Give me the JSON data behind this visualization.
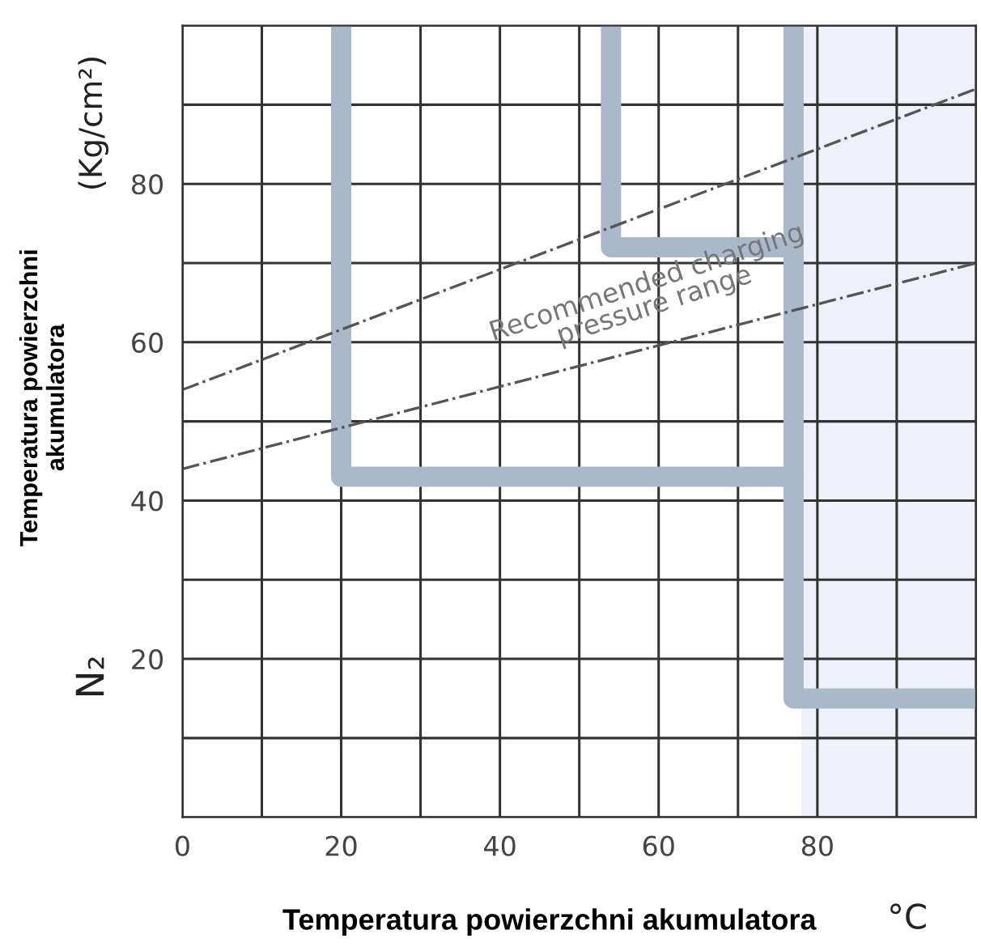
{
  "chart_data": {
    "type": "line",
    "xlabel": "Temperatura powierzchni akumulatora",
    "ylabel": "Temperatura powierzchni\nakumulatora",
    "annotations": [
      "Recommended charging\npressure range",
      "(Kg/cm²)",
      "N₂",
      "°C"
    ],
    "series": [
      {
        "x": [
          20,
          20,
          77,
          77,
          100
        ],
        "values": [
          100,
          43,
          43,
          15,
          15
        ],
        "color": "#a9b9ca",
        "line_style": "solid"
      },
      {
        "x": [
          77,
          77
        ],
        "values": [
          43,
          100
        ],
        "color": "#a9b9ca",
        "line_style": "solid"
      },
      {
        "x": [
          54,
          54,
          77
        ],
        "values": [
          100,
          72,
          72
        ],
        "color": "#a9b9ca",
        "line_style": "solid"
      },
      {
        "x": [
          0,
          100
        ],
        "values": [
          54,
          92
        ],
        "color": "#555555",
        "line_style": "dashdot"
      },
      {
        "x": [
          0,
          100
        ],
        "values": [
          44,
          70
        ],
        "color": "#555555",
        "line_style": "dashdot"
      }
    ],
    "bands": [
      {
        "axis": "x",
        "from": 78,
        "to": 100,
        "color": "#eef1fa"
      }
    ],
    "xlim": [
      0,
      100
    ],
    "ylim": [
      0,
      100
    ],
    "xticks": [
      0,
      {
        "value": 10,
        "label": null
      },
      20,
      {
        "value": 30,
        "label": null
      },
      40,
      {
        "value": 50,
        "label": null
      },
      60,
      {
        "value": 70,
        "label": null
      },
      80,
      {
        "value": 90,
        "label": null
      },
      {
        "value": 100,
        "label": null
      }
    ],
    "yticks": [
      {
        "value": 0,
        "label": null
      },
      {
        "value": 10,
        "label": null
      },
      20,
      {
        "value": 30,
        "label": null
      },
      40,
      {
        "value": 50,
        "label": null
      },
      60,
      {
        "value": 70,
        "label": null
      },
      80,
      {
        "value": 90,
        "label": null
      },
      {
        "value": 100,
        "label": null
      }
    ],
    "grid": true,
    "legend": false,
    "marker": "none"
  }
}
